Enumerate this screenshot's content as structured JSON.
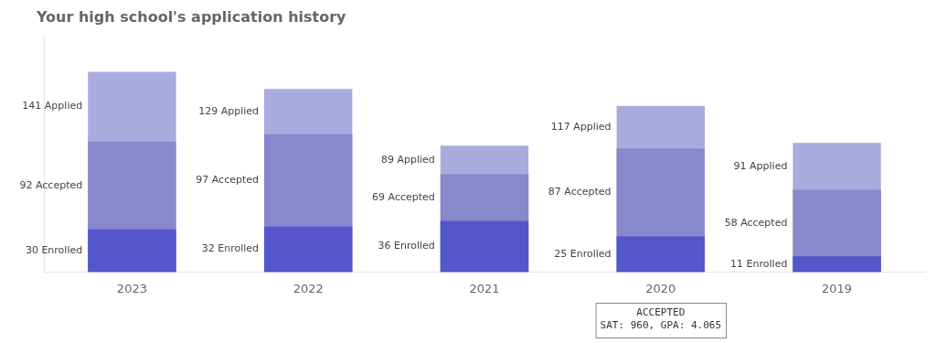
{
  "chart_data": {
    "type": "bar",
    "title": "Your high school's application history",
    "categories": [
      "2023",
      "2022",
      "2021",
      "2020",
      "2019"
    ],
    "series": [
      {
        "name": "Enrolled",
        "color": "#5555cc",
        "values": [
          30,
          32,
          36,
          25,
          11
        ],
        "value_labels": [
          "30 Enrolled",
          "32 Enrolled",
          "36 Enrolled",
          "25 Enrolled",
          "11 Enrolled"
        ]
      },
      {
        "name": "Accepted",
        "color": "#8888cc",
        "values": [
          92,
          97,
          69,
          87,
          58
        ],
        "value_labels": [
          "92 Accepted",
          "97 Accepted",
          "69 Accepted",
          "87 Accepted",
          "58 Accepted"
        ]
      },
      {
        "name": "Applied",
        "color": "#aaaadd",
        "values": [
          141,
          129,
          89,
          117,
          91
        ],
        "value_labels": [
          "141 Applied",
          "129 Applied",
          "89 Applied",
          "117 Applied",
          "91 Applied"
        ]
      }
    ],
    "ylim": [
      0,
      166.38
    ],
    "grid": false,
    "tick_labels": "x",
    "data_labels": true,
    "annotations": [
      {
        "text": "ACCEPTED\nSAT: 960, GPA: 4.065",
        "x": "2020"
      }
    ]
  }
}
